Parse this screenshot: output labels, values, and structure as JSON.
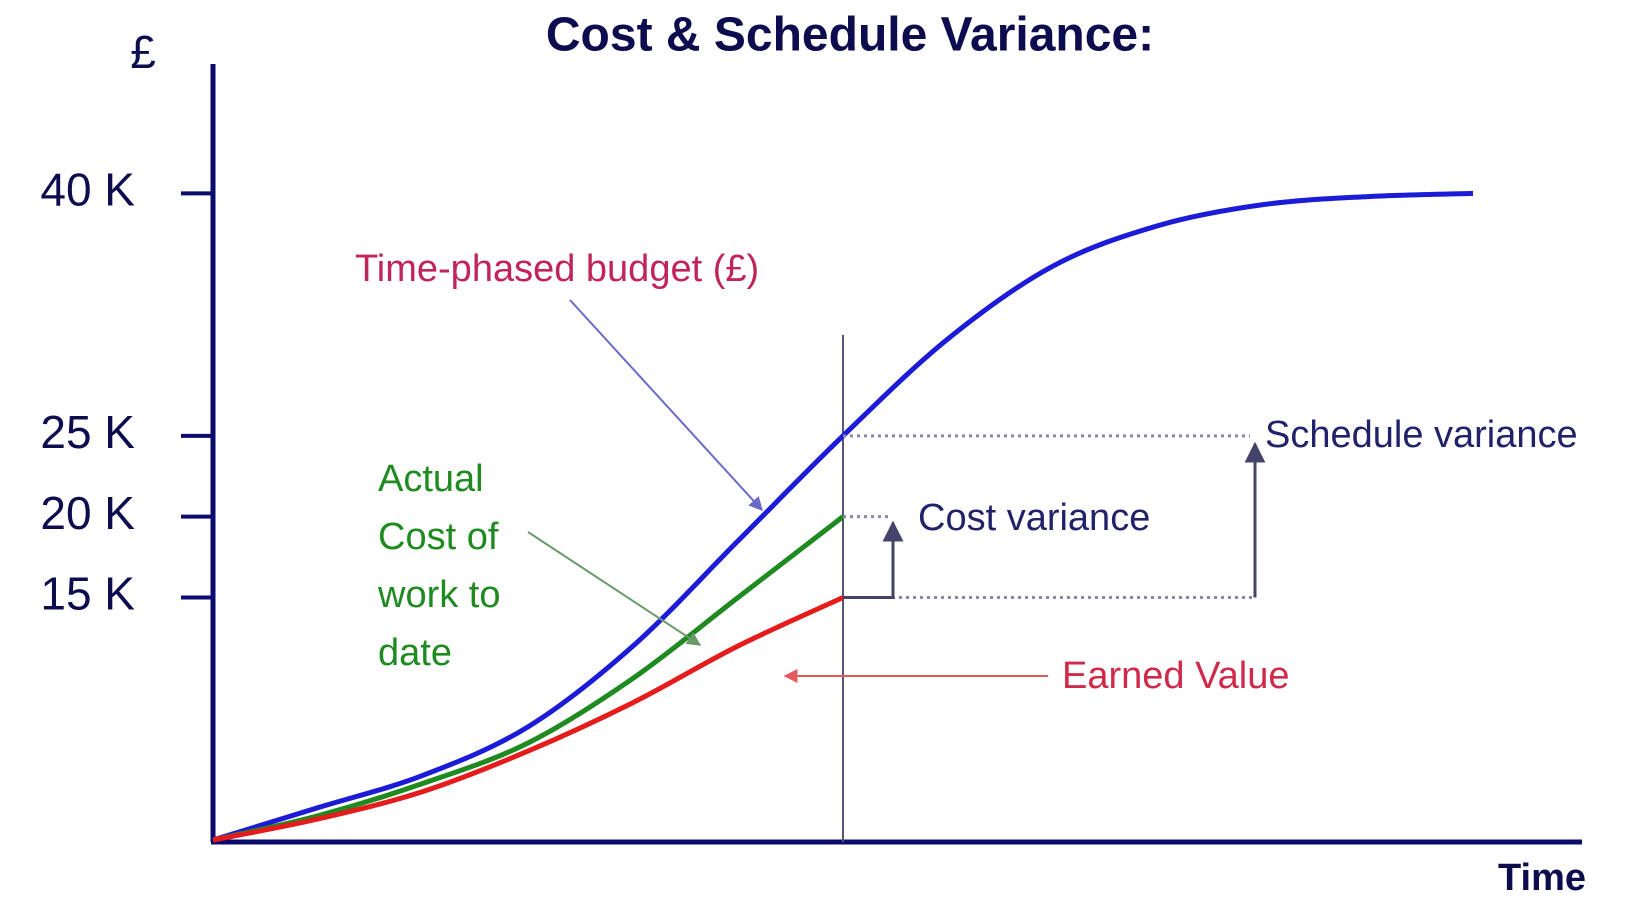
{
  "chart_data": {
    "type": "line",
    "title": "Cost & Schedule Variance:",
    "y_label": "£",
    "x_label": "Time",
    "categories": [
      null,
      null,
      null,
      null,
      null,
      null,
      null,
      null,
      null,
      null,
      null,
      null,
      null
    ],
    "series": [
      {
        "name": "Time-phased budget (£)",
        "color": "#1c1cd8",
        "values": [
          0,
          2000,
          4000,
          7000,
          12000,
          18500,
          25000,
          31000,
          35500,
          38000,
          39300,
          39800,
          40000
        ]
      },
      {
        "name": "Actual Cost of work to date",
        "color": "#1f8a1f",
        "values": [
          0,
          1500,
          3500,
          6000,
          10000,
          15000,
          20000,
          null,
          null,
          null,
          null,
          null,
          null
        ]
      },
      {
        "name": "Earned Value",
        "color": "#e41c1c",
        "values": [
          0,
          1300,
          3000,
          5500,
          8500,
          12000,
          15000,
          null,
          null,
          null,
          null,
          null,
          null
        ]
      }
    ],
    "annotations": [
      "Schedule variance",
      "Cost variance"
    ],
    "ylim": [
      0,
      48000
    ],
    "yticks": [
      {
        "value": 15000,
        "label": "15 K"
      },
      {
        "value": 20000,
        "label": "20 K"
      },
      {
        "value": 25000,
        "label": "25 K"
      },
      {
        "value": 40000,
        "label": "40 K"
      }
    ]
  }
}
